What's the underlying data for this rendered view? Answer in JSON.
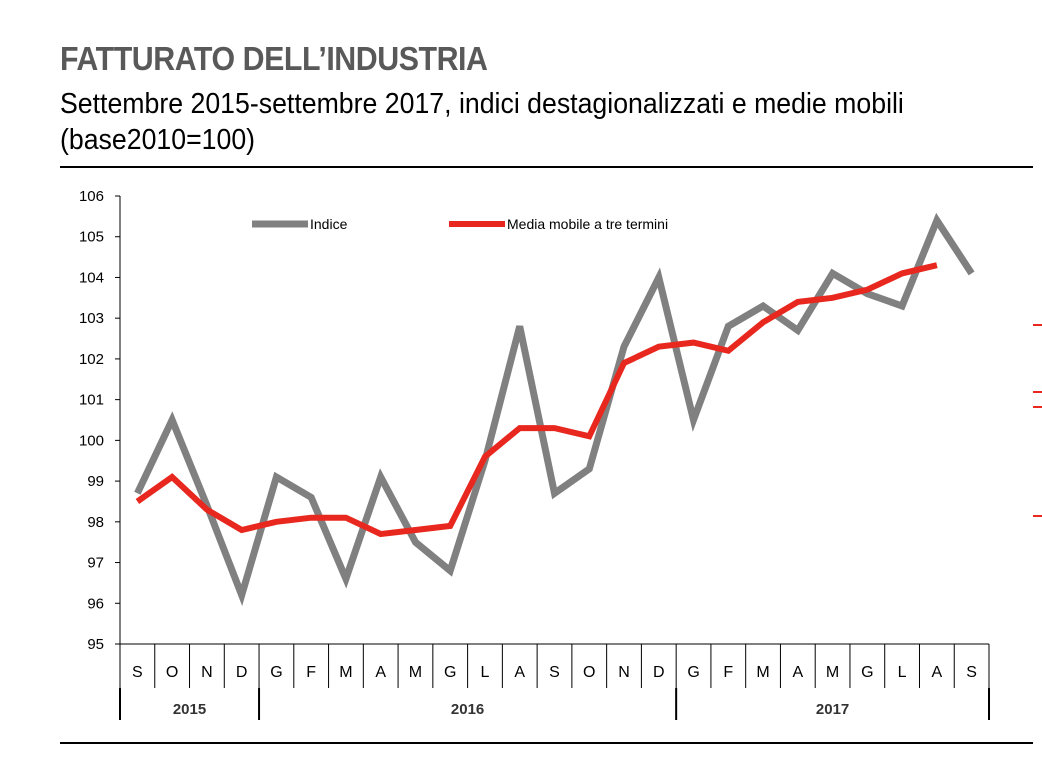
{
  "header": {
    "title": "FATTURATO DELL’INDUSTRIA",
    "subtitle": "Settembre 2015-settembre 2017, indici destagionalizzati e medie mobili (base2010=100)"
  },
  "chart_data": {
    "type": "line",
    "categories": [
      "S",
      "O",
      "N",
      "D",
      "G",
      "F",
      "M",
      "A",
      "M",
      "G",
      "L",
      "A",
      "S",
      "O",
      "N",
      "D",
      "G",
      "F",
      "M",
      "A",
      "M",
      "G",
      "L",
      "A",
      "S"
    ],
    "years": [
      {
        "label": "2015",
        "start": 0,
        "end": 3
      },
      {
        "label": "2016",
        "start": 4,
        "end": 15
      },
      {
        "label": "2017",
        "start": 16,
        "end": 24
      }
    ],
    "ylim": [
      95,
      106
    ],
    "yticks": [
      95,
      96,
      97,
      98,
      99,
      100,
      101,
      102,
      103,
      104,
      105,
      106
    ],
    "legend_position": "top",
    "series": [
      {
        "name": "Indice",
        "color": "#808080",
        "values": [
          98.7,
          100.5,
          98.4,
          96.2,
          99.1,
          98.6,
          96.6,
          99.1,
          97.5,
          96.8,
          99.5,
          102.8,
          98.7,
          99.3,
          102.3,
          104.0,
          100.5,
          102.8,
          103.3,
          102.7,
          104.1,
          103.6,
          103.3,
          105.4,
          104.1
        ]
      },
      {
        "name": "Media mobile a tre termini",
        "color": "#e8281e",
        "values": [
          98.5,
          99.1,
          98.3,
          97.8,
          98.0,
          98.1,
          98.1,
          97.7,
          97.8,
          97.9,
          99.6,
          100.3,
          100.3,
          100.1,
          101.9,
          102.3,
          102.4,
          102.2,
          102.9,
          103.4,
          103.5,
          103.7,
          104.1,
          104.3,
          null
        ]
      }
    ]
  }
}
